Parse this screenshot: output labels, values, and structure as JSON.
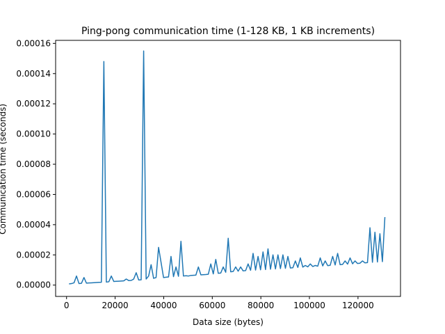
{
  "chart_data": {
    "type": "line",
    "title": "Ping-pong communication time (1-128 KB, 1 KB increments)",
    "xlabel": "Data size (bytes)",
    "ylabel": "Communication time (seconds)",
    "xlim": [
      -4500,
      137500
    ],
    "ylim": [
      -7.5e-06,
      0.000162
    ],
    "xticks": [
      0,
      20000,
      40000,
      60000,
      80000,
      100000,
      120000
    ],
    "xtick_labels": [
      "0",
      "20000",
      "40000",
      "60000",
      "80000",
      "100000",
      "120000"
    ],
    "yticks": [
      0,
      2e-05,
      4e-05,
      6e-05,
      8e-05,
      0.0001,
      0.00012,
      0.00014,
      0.00016
    ],
    "ytick_labels": [
      "0.00000",
      "0.00002",
      "0.00004",
      "0.00006",
      "0.00008",
      "0.00010",
      "0.00012",
      "0.00014",
      "0.00016"
    ],
    "grid": false,
    "line_color": "#1f77b4",
    "series": [
      {
        "x": [
          1024,
          2048,
          3072,
          4096,
          5120,
          6144,
          7168,
          8192,
          9216,
          10240,
          11264,
          12288,
          13312,
          14336,
          15360,
          16384,
          17408,
          18432,
          19456,
          20480,
          21504,
          22528,
          23552,
          24576,
          25600,
          26624,
          27648,
          28672,
          29696,
          30720,
          31744,
          32768,
          33792,
          34816,
          35840,
          36864,
          37888,
          38912,
          39936,
          40960,
          41984,
          43008,
          44032,
          45056,
          46080,
          47104,
          48128,
          49152,
          50176,
          51200,
          52224,
          53248,
          54272,
          55296,
          56320,
          57344,
          58368,
          59392,
          60416,
          61440,
          62464,
          63488,
          64512,
          65536,
          66560,
          67584,
          68608,
          69632,
          70656,
          71680,
          72704,
          73728,
          74752,
          75776,
          76800,
          77824,
          78848,
          79872,
          80896,
          81920,
          82944,
          83968,
          84992,
          86016,
          87040,
          88064,
          89088,
          90112,
          91136,
          92160,
          93184,
          94208,
          95232,
          96256,
          97280,
          98304,
          99328,
          100352,
          101376,
          102400,
          103424,
          104448,
          105472,
          106496,
          107520,
          108544,
          109568,
          110592,
          111616,
          112640,
          113664,
          114688,
          115712,
          116736,
          117760,
          118784,
          119808,
          120832,
          121856,
          122880,
          123904,
          124928,
          125952,
          126976,
          128000,
          129024,
          130048,
          131072
        ],
        "y": [
          8e-07,
          1e-06,
          1.5e-06,
          6e-06,
          1e-06,
          1.2e-06,
          5e-06,
          1.3e-06,
          1.4e-06,
          1.5e-06,
          1.6e-06,
          1.7e-06,
          1.8e-06,
          1.9e-06,
          0.000148,
          2e-06,
          2.2e-06,
          6e-06,
          2.4e-06,
          2.5e-06,
          2.6e-06,
          2.7e-06,
          2.8e-06,
          4e-06,
          3e-06,
          3.1e-06,
          4e-06,
          8.2e-06,
          3.4e-06,
          3.5e-06,
          0.000155,
          4e-06,
          6e-06,
          1.35e-05,
          4.5e-06,
          5e-06,
          2.5e-05,
          1.5e-05,
          5e-06,
          5.2e-06,
          5.4e-06,
          1.9e-05,
          5.6e-06,
          1.2e-05,
          5.8e-06,
          2.9e-05,
          6e-06,
          6.2e-06,
          6e-06,
          6.4e-06,
          6.5e-06,
          6.6e-06,
          1.2e-05,
          6.8e-06,
          6.9e-06,
          7e-06,
          7.2e-06,
          1.4e-05,
          7.4e-06,
          1.7e-05,
          7.8e-06,
          8e-06,
          1.2e-05,
          8.5e-06,
          3.1e-05,
          8.8e-06,
          9e-06,
          1.2e-05,
          9.2e-06,
          1.2e-05,
          9.4e-06,
          9.6e-06,
          1.4e-05,
          9.8e-06,
          2.1e-05,
          9.95e-06,
          1.9e-05,
          1.01e-05,
          2.2e-05,
          1.03e-05,
          2.4e-05,
          1.05e-05,
          2e-05,
          1.07e-05,
          2e-05,
          1.09e-05,
          2e-05,
          1.11e-05,
          1.9e-05,
          1.13e-05,
          1.15e-05,
          1.6e-05,
          1.17e-05,
          1.8e-05,
          1.19e-05,
          1.3e-05,
          1.21e-05,
          1.4e-05,
          1.23e-05,
          1.3e-05,
          1.25e-05,
          1.8e-05,
          1.27e-05,
          1.6e-05,
          1.29e-05,
          1.31e-05,
          1.9e-05,
          1.33e-05,
          2.1e-05,
          1.35e-05,
          1.37e-05,
          1.6e-05,
          1.39e-05,
          1.8e-05,
          1.41e-05,
          1.6e-05,
          1.43e-05,
          1.45e-05,
          1.6e-05,
          1.47e-05,
          1.49e-05,
          3.8e-05,
          1.51e-05,
          3.5e-05,
          1.53e-05,
          3.4e-05,
          1.55e-05,
          4.5e-05
        ]
      }
    ]
  }
}
